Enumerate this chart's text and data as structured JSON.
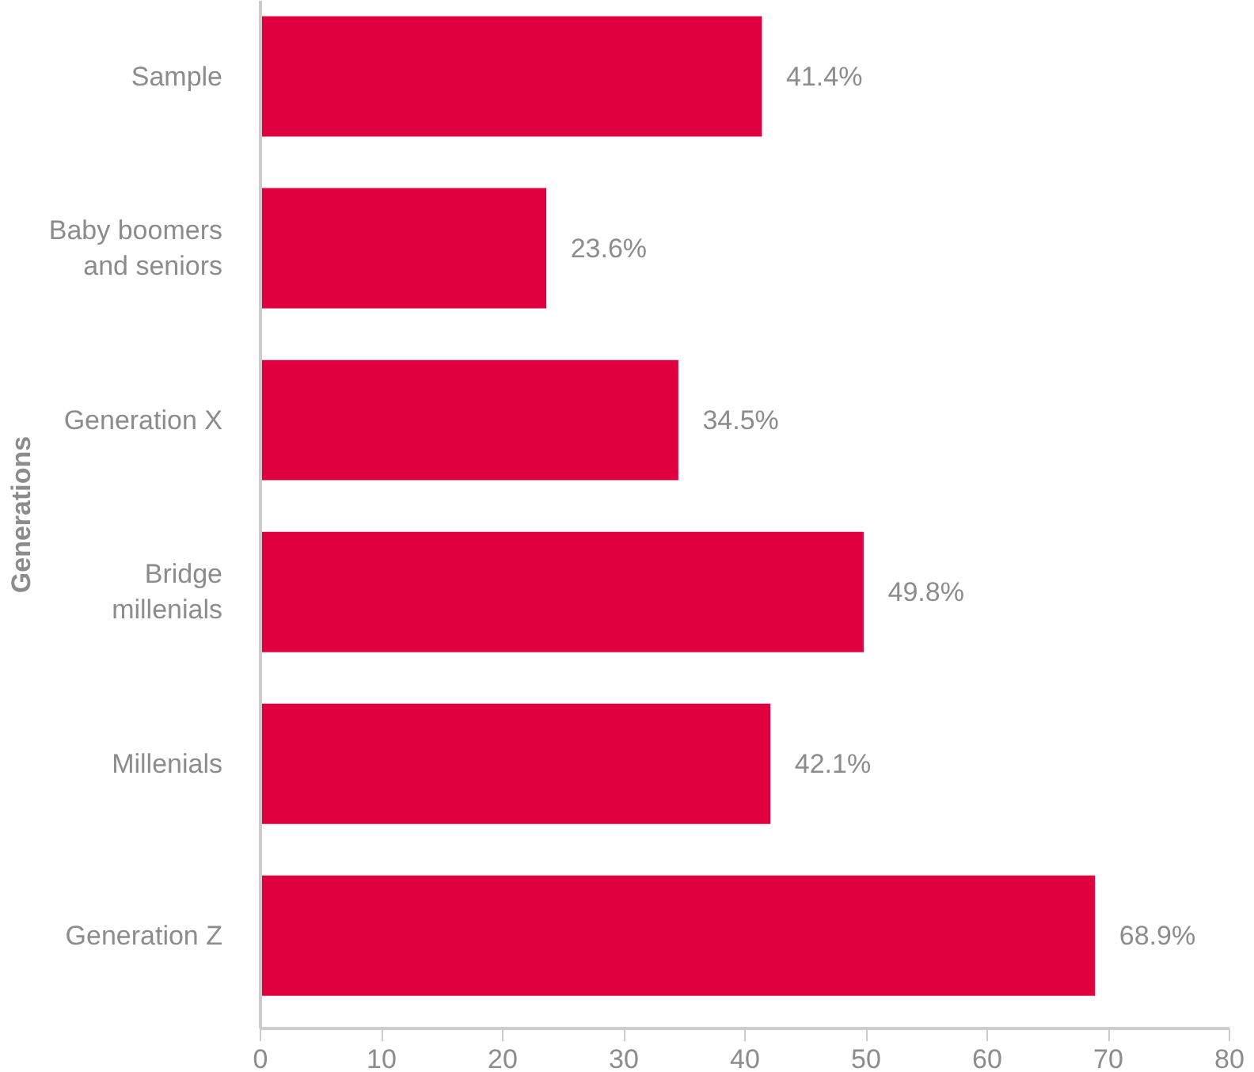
{
  "chart_data": {
    "type": "bar",
    "orientation": "horizontal",
    "ylabel": "Generations",
    "categories": [
      "Sample",
      "Baby boomers and seniors",
      "Generation X",
      "Bridge millenials",
      "Millenials",
      "Generation Z"
    ],
    "values": [
      41.4,
      23.6,
      34.5,
      49.8,
      42.1,
      68.9
    ],
    "value_labels": [
      "41.4%",
      "23.6%",
      "34.5%",
      "49.8%",
      "42.1%",
      "68.9%"
    ],
    "color": "#e0003f",
    "xlim": [
      0,
      80
    ],
    "xticks": [
      0,
      10,
      20,
      30,
      40,
      50,
      60,
      70,
      80
    ],
    "grid": false
  }
}
